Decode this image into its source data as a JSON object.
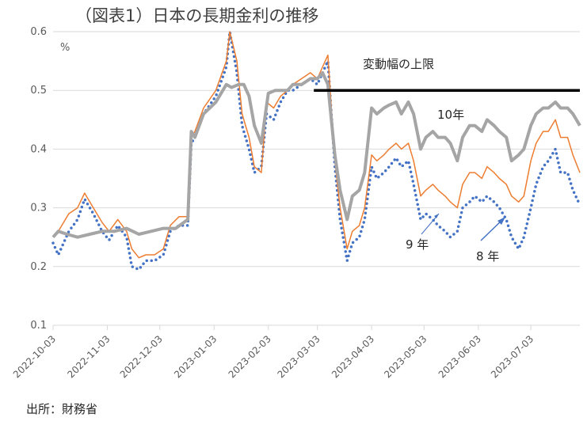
{
  "chart_data": {
    "type": "line",
    "title": "（図表1）日本の長期金利の推移",
    "ylabel": "%",
    "ylim": [
      0.1,
      0.6
    ],
    "yticks": [
      "0.1",
      "0.2",
      "0.3",
      "0.4",
      "0.5",
      "0.6"
    ],
    "xlim": [
      "2022-10-03",
      "2023-07-31"
    ],
    "xticks": [
      "2022-10-03",
      "2022-11-03",
      "2022-12-03",
      "2023-01-03",
      "2023-02-03",
      "2023-03-03",
      "2023-04-03",
      "2023-05-03",
      "2023-06-03",
      "2023-07-03"
    ],
    "grid": "horizontal",
    "source": "出所：財務省",
    "colors": {
      "ten_year": "#a5a5a5",
      "nine_year": "#ed7d31",
      "eight_year": "#4472c4",
      "cap": "#000000",
      "axis": "#d9d9d9"
    },
    "annotations": {
      "cap_label": "変動幅の上限",
      "ten_label": "10年",
      "nine_label": "9 年",
      "eight_label": "8 年"
    },
    "cap": {
      "value": 0.5,
      "from": "2023-03-01",
      "to": "2023-07-31"
    },
    "series": [
      {
        "key": "ten",
        "points": [
          [
            "2022-10-03",
            0.25
          ],
          [
            "2022-10-06",
            0.26
          ],
          [
            "2022-10-11",
            0.255
          ],
          [
            "2022-10-17",
            0.25
          ],
          [
            "2022-10-24",
            0.255
          ],
          [
            "2022-10-31",
            0.26
          ],
          [
            "2022-11-07",
            0.26
          ],
          [
            "2022-11-14",
            0.265
          ],
          [
            "2022-11-21",
            0.255
          ],
          [
            "2022-11-28",
            0.26
          ],
          [
            "2022-12-05",
            0.265
          ],
          [
            "2022-12-12",
            0.265
          ],
          [
            "2022-12-19",
            0.28
          ],
          [
            "2022-12-21",
            0.43
          ],
          [
            "2022-12-23",
            0.42
          ],
          [
            "2022-12-28",
            0.46
          ],
          [
            "2023-01-04",
            0.48
          ],
          [
            "2023-01-10",
            0.51
          ],
          [
            "2023-01-13",
            0.505
          ],
          [
            "2023-01-17",
            0.51
          ],
          [
            "2023-01-20",
            0.51
          ],
          [
            "2023-01-23",
            0.49
          ],
          [
            "2023-01-26",
            0.44
          ],
          [
            "2023-01-30",
            0.41
          ],
          [
            "2023-02-03",
            0.495
          ],
          [
            "2023-02-07",
            0.5
          ],
          [
            "2023-02-10",
            0.5
          ],
          [
            "2023-02-14",
            0.5
          ],
          [
            "2023-02-17",
            0.51
          ],
          [
            "2023-02-22",
            0.51
          ],
          [
            "2023-02-27",
            0.52
          ],
          [
            "2023-03-03",
            0.52
          ],
          [
            "2023-03-06",
            0.53
          ],
          [
            "2023-03-09",
            0.51
          ],
          [
            "2023-03-13",
            0.39
          ],
          [
            "2023-03-16",
            0.33
          ],
          [
            "2023-03-20",
            0.28
          ],
          [
            "2023-03-23",
            0.32
          ],
          [
            "2023-03-27",
            0.33
          ],
          [
            "2023-03-30",
            0.36
          ],
          [
            "2023-04-03",
            0.47
          ],
          [
            "2023-04-06",
            0.46
          ],
          [
            "2023-04-10",
            0.47
          ],
          [
            "2023-04-13",
            0.475
          ],
          [
            "2023-04-17",
            0.48
          ],
          [
            "2023-04-20",
            0.46
          ],
          [
            "2023-04-24",
            0.48
          ],
          [
            "2023-04-27",
            0.46
          ],
          [
            "2023-05-01",
            0.4
          ],
          [
            "2023-05-04",
            0.42
          ],
          [
            "2023-05-08",
            0.43
          ],
          [
            "2023-05-11",
            0.42
          ],
          [
            "2023-05-15",
            0.42
          ],
          [
            "2023-05-18",
            0.41
          ],
          [
            "2023-05-22",
            0.38
          ],
          [
            "2023-05-25",
            0.42
          ],
          [
            "2023-05-29",
            0.44
          ],
          [
            "2023-06-01",
            0.44
          ],
          [
            "2023-06-05",
            0.43
          ],
          [
            "2023-06-08",
            0.45
          ],
          [
            "2023-06-12",
            0.44
          ],
          [
            "2023-06-15",
            0.43
          ],
          [
            "2023-06-19",
            0.42
          ],
          [
            "2023-06-22",
            0.38
          ],
          [
            "2023-06-26",
            0.39
          ],
          [
            "2023-06-29",
            0.4
          ],
          [
            "2023-07-03",
            0.44
          ],
          [
            "2023-07-06",
            0.46
          ],
          [
            "2023-07-10",
            0.47
          ],
          [
            "2023-07-13",
            0.47
          ],
          [
            "2023-07-17",
            0.48
          ],
          [
            "2023-07-20",
            0.47
          ],
          [
            "2023-07-24",
            0.47
          ],
          [
            "2023-07-27",
            0.46
          ],
          [
            "2023-07-31",
            0.44
          ]
        ]
      },
      {
        "key": "nine",
        "points": [
          [
            "2022-10-03",
            0.25
          ],
          [
            "2022-10-06",
            0.26
          ],
          [
            "2022-10-12",
            0.29
          ],
          [
            "2022-10-17",
            0.3
          ],
          [
            "2022-10-21",
            0.325
          ],
          [
            "2022-10-26",
            0.3
          ],
          [
            "2022-10-31",
            0.275
          ],
          [
            "2022-11-04",
            0.26
          ],
          [
            "2022-11-09",
            0.28
          ],
          [
            "2022-11-14",
            0.26
          ],
          [
            "2022-11-17",
            0.23
          ],
          [
            "2022-11-21",
            0.215
          ],
          [
            "2022-11-25",
            0.22
          ],
          [
            "2022-11-30",
            0.22
          ],
          [
            "2022-12-05",
            0.23
          ],
          [
            "2022-12-09",
            0.27
          ],
          [
            "2022-12-14",
            0.285
          ],
          [
            "2022-12-19",
            0.285
          ],
          [
            "2022-12-21",
            0.42
          ],
          [
            "2022-12-23",
            0.43
          ],
          [
            "2022-12-28",
            0.47
          ],
          [
            "2023-01-04",
            0.5
          ],
          [
            "2023-01-10",
            0.55
          ],
          [
            "2023-01-12",
            0.6
          ],
          [
            "2023-01-16",
            0.55
          ],
          [
            "2023-01-19",
            0.46
          ],
          [
            "2023-01-23",
            0.42
          ],
          [
            "2023-01-26",
            0.37
          ],
          [
            "2023-01-30",
            0.36
          ],
          [
            "2023-02-02",
            0.48
          ],
          [
            "2023-02-06",
            0.47
          ],
          [
            "2023-02-10",
            0.49
          ],
          [
            "2023-02-14",
            0.5
          ],
          [
            "2023-02-17",
            0.51
          ],
          [
            "2023-02-22",
            0.52
          ],
          [
            "2023-02-27",
            0.53
          ],
          [
            "2023-03-03",
            0.52
          ],
          [
            "2023-03-06",
            0.54
          ],
          [
            "2023-03-09",
            0.56
          ],
          [
            "2023-03-13",
            0.38
          ],
          [
            "2023-03-16",
            0.3
          ],
          [
            "2023-03-20",
            0.23
          ],
          [
            "2023-03-23",
            0.26
          ],
          [
            "2023-03-27",
            0.27
          ],
          [
            "2023-03-30",
            0.3
          ],
          [
            "2023-04-03",
            0.39
          ],
          [
            "2023-04-06",
            0.38
          ],
          [
            "2023-04-10",
            0.39
          ],
          [
            "2023-04-13",
            0.4
          ],
          [
            "2023-04-17",
            0.41
          ],
          [
            "2023-04-20",
            0.4
          ],
          [
            "2023-04-24",
            0.41
          ],
          [
            "2023-04-27",
            0.38
          ],
          [
            "2023-05-01",
            0.32
          ],
          [
            "2023-05-04",
            0.33
          ],
          [
            "2023-05-08",
            0.34
          ],
          [
            "2023-05-11",
            0.33
          ],
          [
            "2023-05-15",
            0.32
          ],
          [
            "2023-05-18",
            0.31
          ],
          [
            "2023-05-22",
            0.3
          ],
          [
            "2023-05-25",
            0.34
          ],
          [
            "2023-05-29",
            0.36
          ],
          [
            "2023-06-01",
            0.36
          ],
          [
            "2023-06-05",
            0.35
          ],
          [
            "2023-06-08",
            0.37
          ],
          [
            "2023-06-12",
            0.36
          ],
          [
            "2023-06-15",
            0.35
          ],
          [
            "2023-06-19",
            0.34
          ],
          [
            "2023-06-22",
            0.32
          ],
          [
            "2023-06-26",
            0.31
          ],
          [
            "2023-06-29",
            0.32
          ],
          [
            "2023-07-03",
            0.38
          ],
          [
            "2023-07-06",
            0.41
          ],
          [
            "2023-07-10",
            0.43
          ],
          [
            "2023-07-13",
            0.43
          ],
          [
            "2023-07-17",
            0.45
          ],
          [
            "2023-07-20",
            0.42
          ],
          [
            "2023-07-24",
            0.42
          ],
          [
            "2023-07-27",
            0.39
          ],
          [
            "2023-07-31",
            0.36
          ]
        ]
      },
      {
        "key": "eight",
        "points": [
          [
            "2022-10-03",
            0.24
          ],
          [
            "2022-10-06",
            0.22
          ],
          [
            "2022-10-12",
            0.26
          ],
          [
            "2022-10-17",
            0.28
          ],
          [
            "2022-10-21",
            0.315
          ],
          [
            "2022-10-26",
            0.29
          ],
          [
            "2022-10-31",
            0.26
          ],
          [
            "2022-11-04",
            0.245
          ],
          [
            "2022-11-09",
            0.27
          ],
          [
            "2022-11-14",
            0.25
          ],
          [
            "2022-11-17",
            0.2
          ],
          [
            "2022-11-21",
            0.195
          ],
          [
            "2022-11-25",
            0.21
          ],
          [
            "2022-11-30",
            0.21
          ],
          [
            "2022-12-05",
            0.22
          ],
          [
            "2022-12-09",
            0.26
          ],
          [
            "2022-12-14",
            0.27
          ],
          [
            "2022-12-19",
            0.27
          ],
          [
            "2022-12-21",
            0.41
          ],
          [
            "2022-12-23",
            0.42
          ],
          [
            "2022-12-28",
            0.46
          ],
          [
            "2023-01-04",
            0.49
          ],
          [
            "2023-01-10",
            0.54
          ],
          [
            "2023-01-12",
            0.6
          ],
          [
            "2023-01-16",
            0.53
          ],
          [
            "2023-01-19",
            0.44
          ],
          [
            "2023-01-23",
            0.4
          ],
          [
            "2023-01-26",
            0.36
          ],
          [
            "2023-01-30",
            0.37
          ],
          [
            "2023-02-02",
            0.46
          ],
          [
            "2023-02-06",
            0.45
          ],
          [
            "2023-02-10",
            0.48
          ],
          [
            "2023-02-14",
            0.5
          ],
          [
            "2023-02-17",
            0.5
          ],
          [
            "2023-02-22",
            0.51
          ],
          [
            "2023-02-27",
            0.52
          ],
          [
            "2023-03-03",
            0.51
          ],
          [
            "2023-03-06",
            0.53
          ],
          [
            "2023-03-09",
            0.55
          ],
          [
            "2023-03-13",
            0.37
          ],
          [
            "2023-03-16",
            0.28
          ],
          [
            "2023-03-20",
            0.21
          ],
          [
            "2023-03-23",
            0.24
          ],
          [
            "2023-03-27",
            0.25
          ],
          [
            "2023-03-30",
            0.28
          ],
          [
            "2023-04-03",
            0.37
          ],
          [
            "2023-04-06",
            0.35
          ],
          [
            "2023-04-10",
            0.36
          ],
          [
            "2023-04-13",
            0.37
          ],
          [
            "2023-04-17",
            0.385
          ],
          [
            "2023-04-20",
            0.37
          ],
          [
            "2023-04-24",
            0.38
          ],
          [
            "2023-04-27",
            0.34
          ],
          [
            "2023-05-01",
            0.28
          ],
          [
            "2023-05-04",
            0.29
          ],
          [
            "2023-05-08",
            0.28
          ],
          [
            "2023-05-11",
            0.27
          ],
          [
            "2023-05-15",
            0.26
          ],
          [
            "2023-05-18",
            0.25
          ],
          [
            "2023-05-22",
            0.26
          ],
          [
            "2023-05-25",
            0.3
          ],
          [
            "2023-05-29",
            0.31
          ],
          [
            "2023-06-01",
            0.32
          ],
          [
            "2023-06-05",
            0.31
          ],
          [
            "2023-06-08",
            0.32
          ],
          [
            "2023-06-12",
            0.31
          ],
          [
            "2023-06-15",
            0.3
          ],
          [
            "2023-06-19",
            0.28
          ],
          [
            "2023-06-22",
            0.25
          ],
          [
            "2023-06-26",
            0.23
          ],
          [
            "2023-06-29",
            0.25
          ],
          [
            "2023-07-03",
            0.3
          ],
          [
            "2023-07-06",
            0.34
          ],
          [
            "2023-07-10",
            0.37
          ],
          [
            "2023-07-13",
            0.38
          ],
          [
            "2023-07-17",
            0.4
          ],
          [
            "2023-07-20",
            0.36
          ],
          [
            "2023-07-24",
            0.36
          ],
          [
            "2023-07-27",
            0.33
          ],
          [
            "2023-07-31",
            0.305
          ]
        ]
      }
    ]
  }
}
